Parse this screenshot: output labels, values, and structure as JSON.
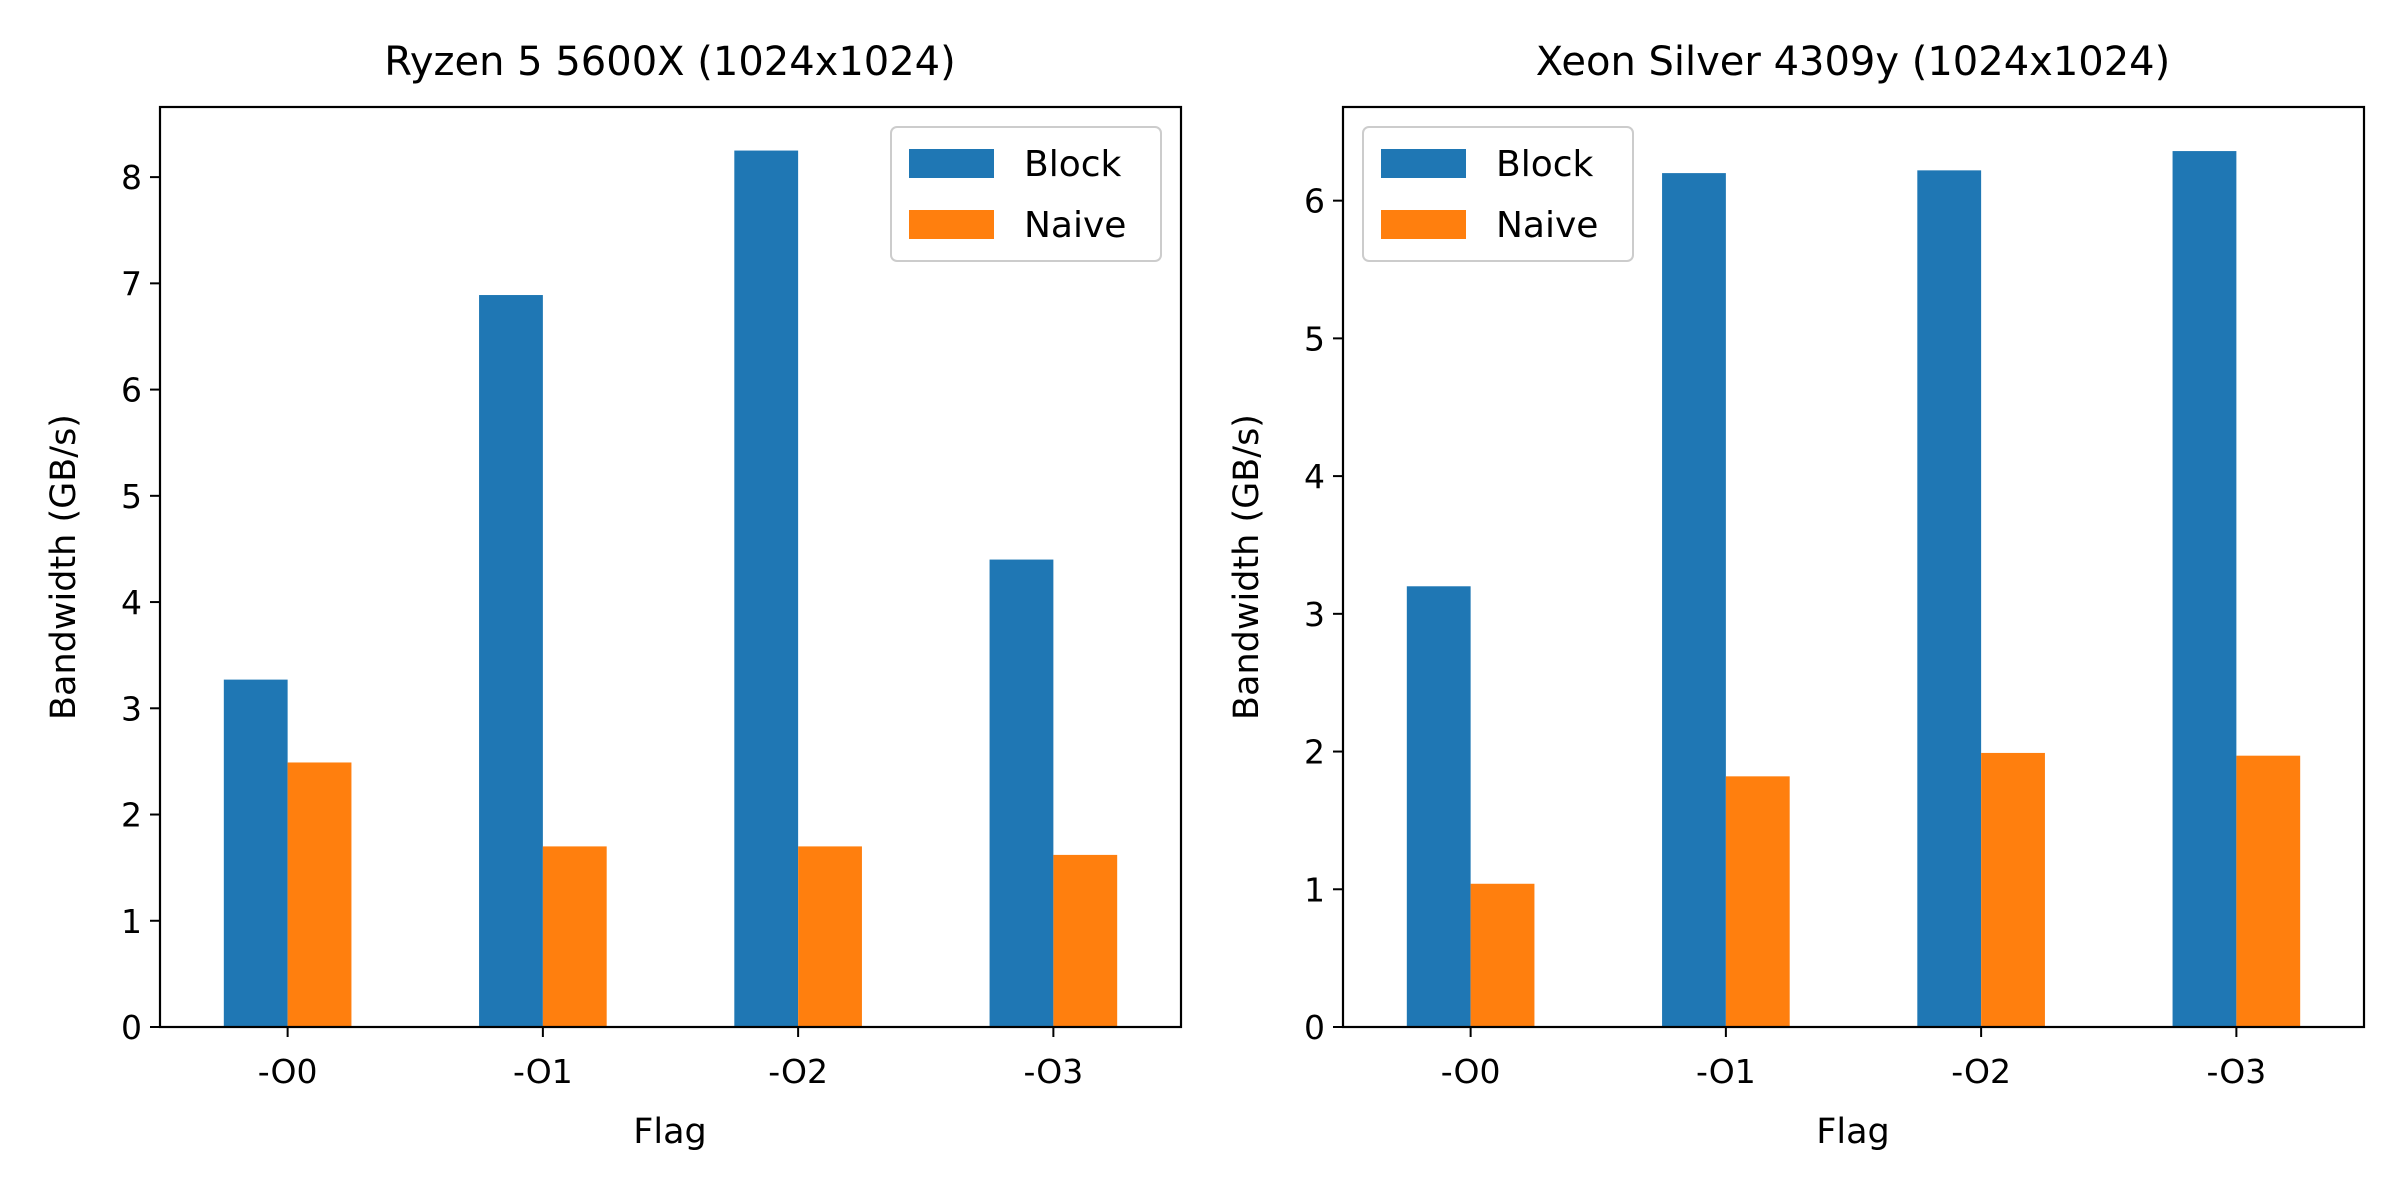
{
  "colors": {
    "Block": "#1f77b4",
    "Naive": "#ff7f0e"
  },
  "chart_data": [
    {
      "type": "bar",
      "title": "Ryzen 5 5600X (1024x1024)",
      "xlabel": "Flag",
      "ylabel": "Bandwidth (GB/s)",
      "categories": [
        "-O0",
        "-O1",
        "-O2",
        "-O3"
      ],
      "series": [
        {
          "name": "Block",
          "values": [
            3.27,
            6.89,
            8.25,
            4.4
          ]
        },
        {
          "name": "Naive",
          "values": [
            2.49,
            1.7,
            1.7,
            1.62
          ]
        }
      ],
      "ylim": [
        0,
        8.66
      ],
      "yticks": [
        0,
        1,
        2,
        3,
        4,
        5,
        6,
        7,
        8
      ],
      "legend": "upper right",
      "grid": false
    },
    {
      "type": "bar",
      "title": "Xeon Silver 4309y (1024x1024)",
      "xlabel": "Flag",
      "ylabel": "Bandwidth (GB/s)",
      "categories": [
        "-O0",
        "-O1",
        "-O2",
        "-O3"
      ],
      "series": [
        {
          "name": "Block",
          "values": [
            3.2,
            6.2,
            6.22,
            6.36
          ]
        },
        {
          "name": "Naive",
          "values": [
            1.04,
            1.82,
            1.99,
            1.97
          ]
        }
      ],
      "ylim": [
        0,
        6.68
      ],
      "yticks": [
        0,
        1,
        2,
        3,
        4,
        5,
        6
      ],
      "legend": "upper left",
      "grid": false
    }
  ]
}
